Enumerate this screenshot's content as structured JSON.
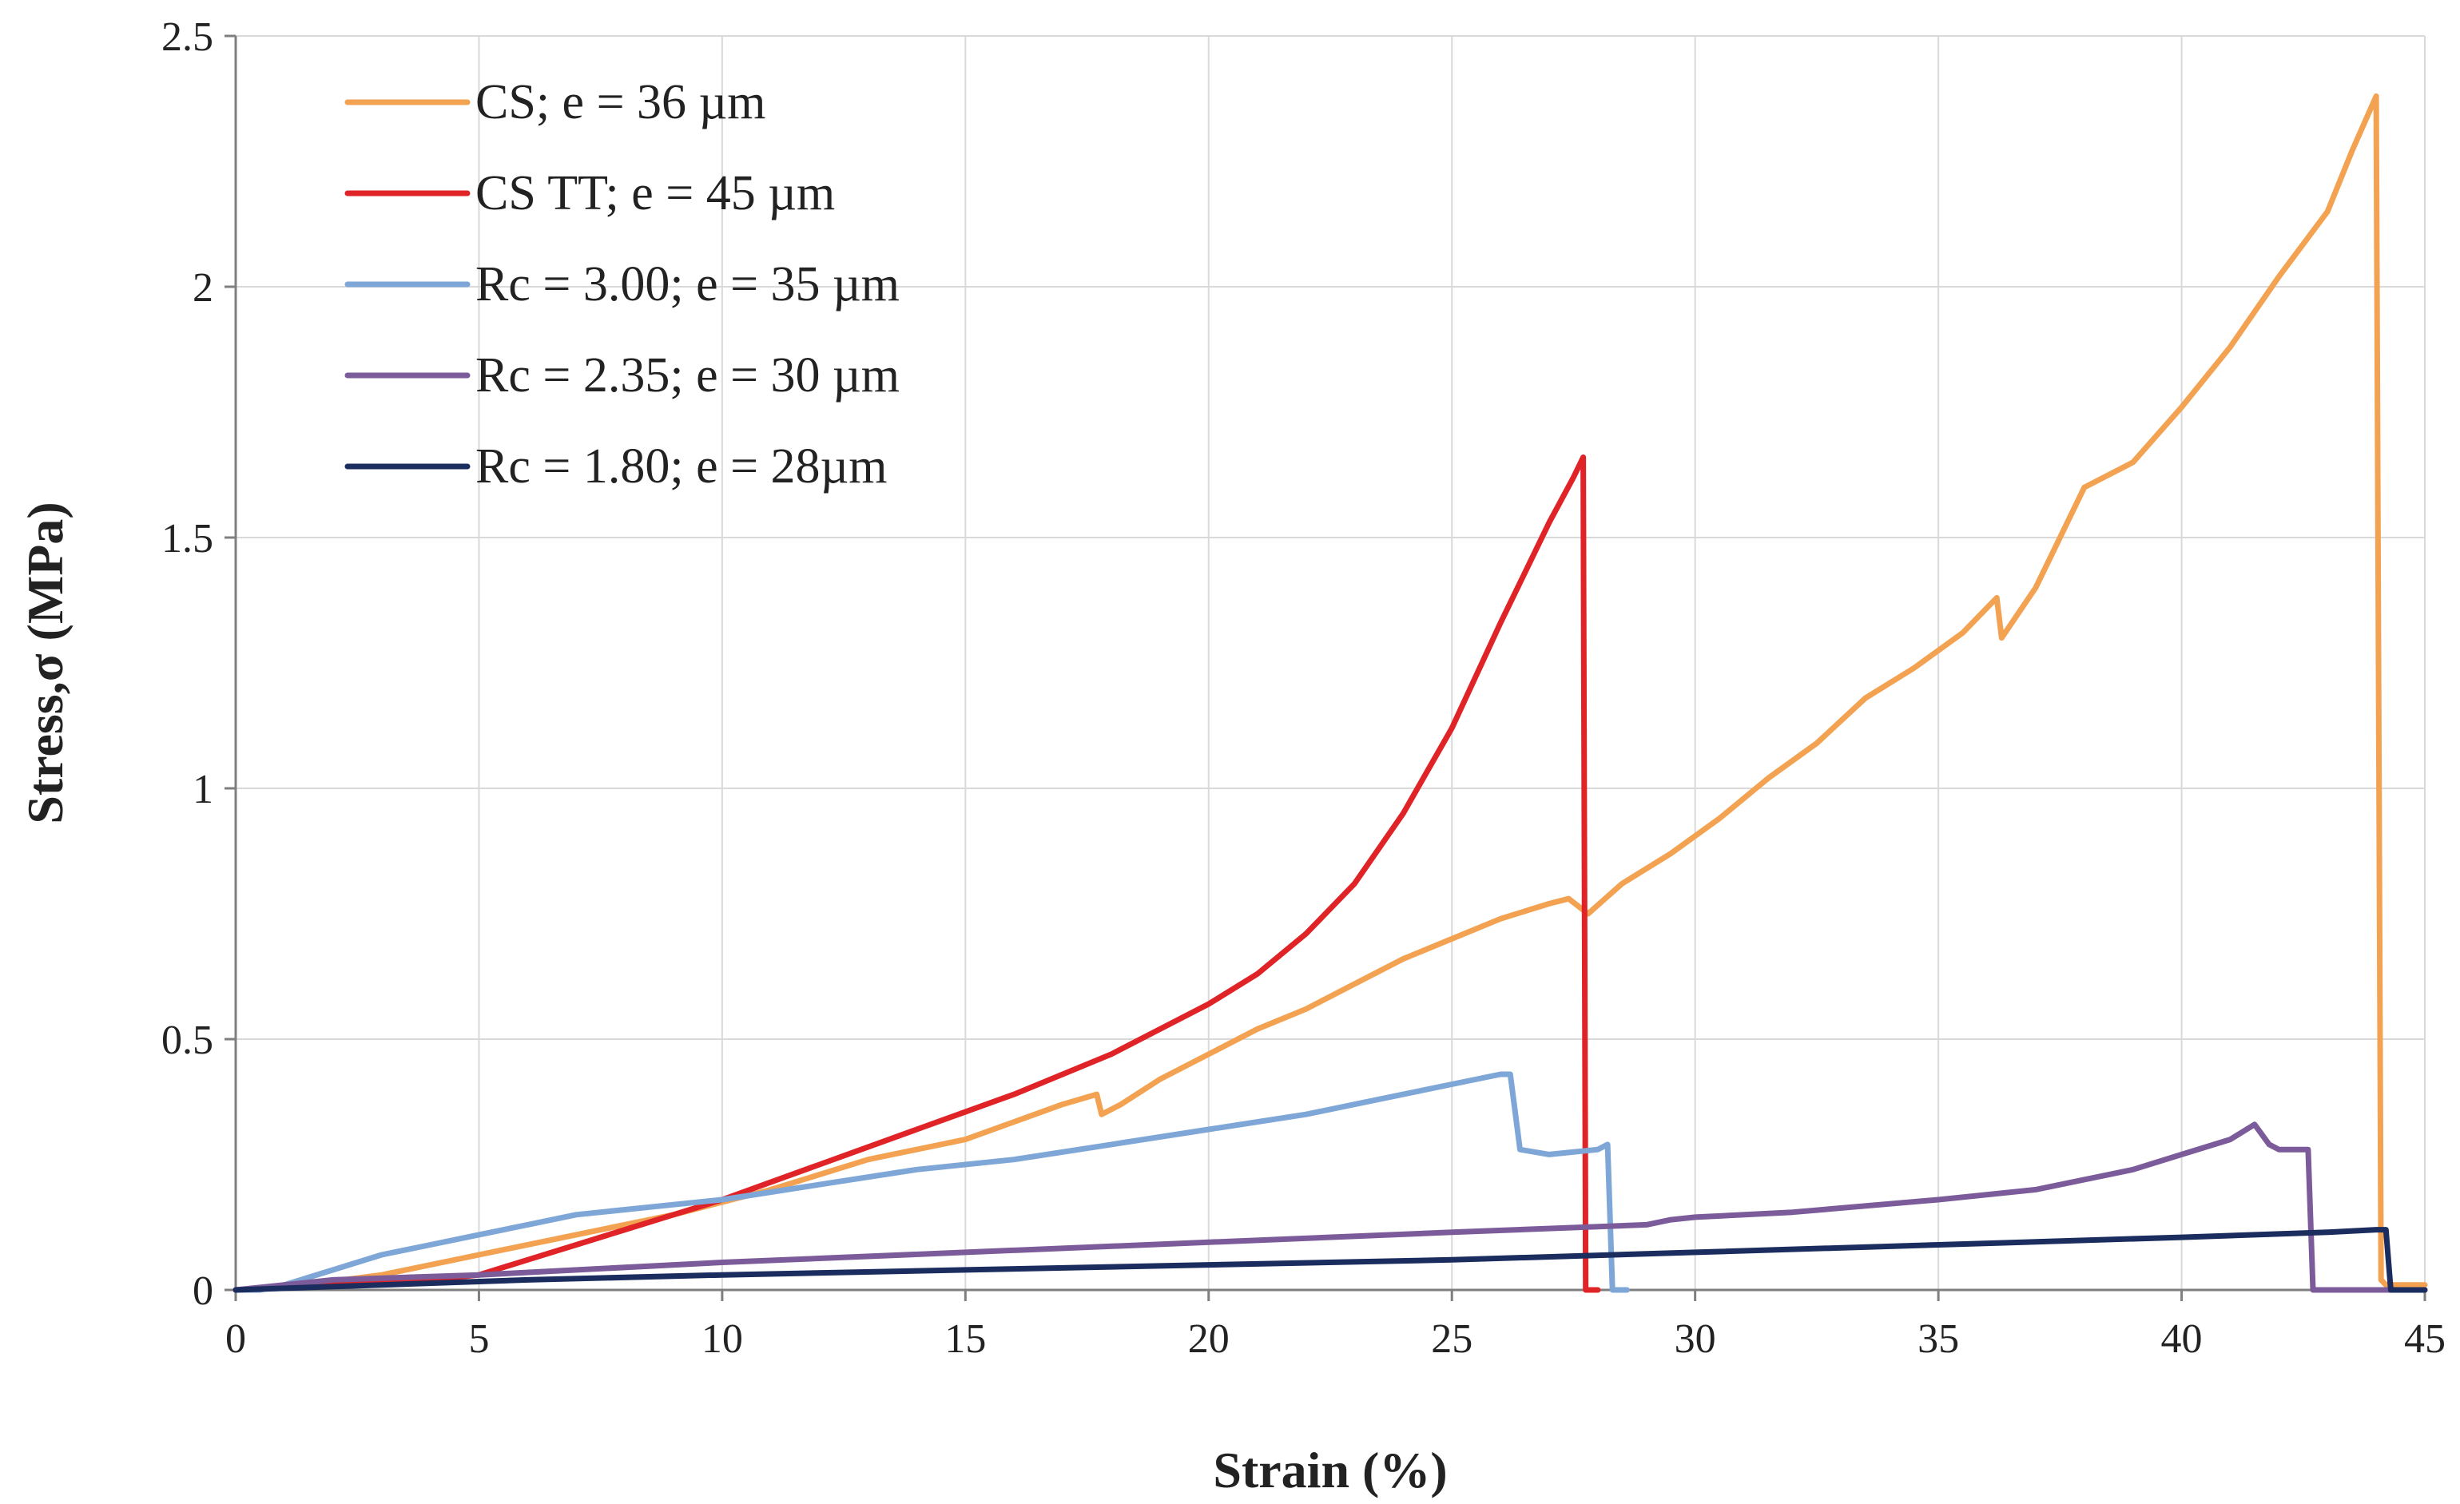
{
  "chart_data": {
    "type": "line",
    "title": "",
    "xlabel": "Strain (%)",
    "ylabel": "Stress,σ  (MPa)",
    "xlim": [
      0,
      45
    ],
    "ylim": [
      0,
      2.5
    ],
    "xticks": [
      0,
      5,
      10,
      15,
      20,
      25,
      30,
      35,
      40,
      45
    ],
    "yticks": [
      0,
      0.5,
      1,
      1.5,
      2,
      2.5
    ],
    "xtick_labels": [
      "0",
      "5",
      "10",
      "15",
      "20",
      "25",
      "30",
      "35",
      "40",
      "45"
    ],
    "ytick_labels": [
      "0",
      "0.5",
      "1",
      "1.5",
      "2",
      "2.5"
    ],
    "grid": true,
    "legend_position": "top-left",
    "series": [
      {
        "name": "CS; e = 36 µm",
        "color": "#f2a251",
        "x": [
          0,
          1,
          3,
          5,
          7,
          9,
          11,
          13,
          15,
          17,
          17.7,
          17.8,
          18.2,
          19,
          20,
          21,
          22,
          23,
          24,
          25,
          26,
          27,
          27.4,
          27.8,
          28.5,
          29.5,
          30.5,
          31.5,
          32.5,
          33.5,
          34.5,
          35.5,
          36.2,
          36.3,
          37,
          38,
          39,
          40,
          41,
          42,
          43,
          43.5,
          44,
          44.1,
          44.2,
          45
        ],
        "y": [
          0,
          0.005,
          0.03,
          0.07,
          0.11,
          0.15,
          0.2,
          0.26,
          0.3,
          0.37,
          0.39,
          0.35,
          0.37,
          0.42,
          0.47,
          0.52,
          0.56,
          0.61,
          0.66,
          0.7,
          0.74,
          0.77,
          0.78,
          0.75,
          0.81,
          0.87,
          0.94,
          1.02,
          1.09,
          1.18,
          1.24,
          1.31,
          1.38,
          1.3,
          1.4,
          1.6,
          1.65,
          1.76,
          1.88,
          2.02,
          2.15,
          2.27,
          2.38,
          0.02,
          0.01,
          0.01
        ]
      },
      {
        "name": "CS TT; e = 45 µm",
        "color": "#e02326",
        "x": [
          0,
          2,
          4,
          5,
          6,
          7,
          8,
          9,
          10,
          12,
          14,
          16,
          18,
          20,
          21,
          22,
          23,
          24,
          25,
          26,
          26.5,
          27,
          27.5,
          27.7,
          27.75,
          28
        ],
        "y": [
          0,
          0.01,
          0.02,
          0.03,
          0.06,
          0.09,
          0.12,
          0.15,
          0.18,
          0.25,
          0.32,
          0.39,
          0.47,
          0.57,
          0.63,
          0.71,
          0.81,
          0.95,
          1.12,
          1.33,
          1.43,
          1.53,
          1.62,
          1.66,
          0.0,
          0.0
        ]
      },
      {
        "name": "Rc = 3.00; e = 35 µm",
        "color": "#7ea6d6",
        "x": [
          0,
          0.5,
          1,
          2,
          3,
          4,
          5,
          6,
          7,
          8,
          9,
          10,
          12,
          14,
          16,
          18,
          20,
          22,
          24,
          25,
          26,
          26.2,
          26.4,
          27,
          28,
          28.2,
          28.3,
          28.6
        ],
        "y": [
          0,
          0.0,
          0.01,
          0.04,
          0.07,
          0.09,
          0.11,
          0.13,
          0.15,
          0.16,
          0.17,
          0.18,
          0.21,
          0.24,
          0.26,
          0.29,
          0.32,
          0.35,
          0.39,
          0.41,
          0.43,
          0.43,
          0.28,
          0.27,
          0.28,
          0.29,
          0.0,
          0.0
        ]
      },
      {
        "name": "Rc = 2.35; e = 30 µm",
        "color": "#7b5b9a",
        "x": [
          0,
          2,
          5,
          10,
          15,
          20,
          25,
          29,
          29.5,
          30,
          32,
          35,
          37,
          39,
          40,
          41,
          41.5,
          41.8,
          42,
          42.6,
          42.7,
          43,
          45
        ],
        "y": [
          0,
          0.02,
          0.03,
          0.055,
          0.075,
          0.095,
          0.115,
          0.13,
          0.14,
          0.145,
          0.155,
          0.18,
          0.2,
          0.24,
          0.27,
          0.3,
          0.33,
          0.29,
          0.28,
          0.28,
          0.0,
          0.0,
          0.0
        ]
      },
      {
        "name": "Rc = 1.80; e = 28µm",
        "color": "#1b2c5e",
        "x": [
          0,
          3,
          6,
          10,
          15,
          20,
          25,
          30,
          35,
          40,
          43,
          44,
          44.2,
          44.3,
          45
        ],
        "y": [
          0,
          0.01,
          0.02,
          0.03,
          0.04,
          0.05,
          0.06,
          0.075,
          0.09,
          0.105,
          0.115,
          0.12,
          0.12,
          0.0,
          0.0
        ]
      }
    ]
  }
}
